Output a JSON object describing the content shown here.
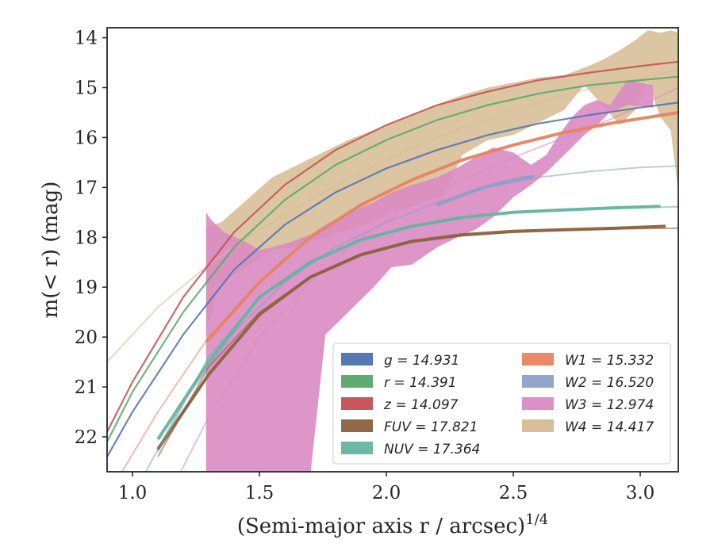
{
  "chart_data": {
    "type": "line",
    "title": "",
    "xlabel": "(Semi-major axis r / arcsec)",
    "xlabel_superscript": "1/4",
    "ylabel": "m(< r) (mag)",
    "xlim": [
      0.9,
      3.15
    ],
    "ylim": [
      22.7,
      13.8
    ],
    "y_inverted": true,
    "x_ticks": [
      1.0,
      1.5,
      2.0,
      2.5,
      3.0
    ],
    "x_tick_labels": [
      "1.0",
      "1.5",
      "2.0",
      "2.5",
      "3.0"
    ],
    "y_ticks": [
      14,
      15,
      16,
      17,
      18,
      19,
      20,
      21,
      22
    ],
    "y_tick_labels": [
      "14",
      "15",
      "16",
      "17",
      "18",
      "19",
      "20",
      "21",
      "22"
    ],
    "grid": false,
    "legend_position": "lower-right",
    "legend_columns": 2,
    "series": [
      {
        "name": "g = 14.931",
        "color": "#4c72b0",
        "kind": "curve",
        "model_x": [
          0.9,
          1.0,
          1.2,
          1.4,
          1.6,
          1.8,
          2.0,
          2.2,
          2.4,
          2.6,
          2.8,
          3.0,
          3.15
        ],
        "model_y": [
          22.4,
          21.5,
          19.95,
          18.65,
          17.75,
          17.1,
          16.62,
          16.25,
          15.95,
          15.72,
          15.55,
          15.4,
          15.3
        ],
        "data_x": [
          0.9,
          1.0,
          1.2,
          1.4,
          1.6,
          1.8,
          2.0,
          2.2,
          2.4,
          2.6,
          2.8,
          3.0,
          3.15
        ],
        "data_y": [
          22.4,
          21.5,
          19.95,
          18.65,
          17.75,
          17.1,
          16.62,
          16.25,
          15.95,
          15.72,
          15.55,
          15.4,
          15.3
        ]
      },
      {
        "name": "r = 14.391",
        "color": "#55a868",
        "kind": "curve",
        "model_x": [
          0.9,
          1.0,
          1.2,
          1.4,
          1.6,
          1.8,
          2.0,
          2.2,
          2.4,
          2.6,
          2.8,
          3.0,
          3.15
        ],
        "model_y": [
          22.1,
          21.1,
          19.5,
          18.2,
          17.25,
          16.55,
          16.05,
          15.65,
          15.35,
          15.12,
          14.95,
          14.85,
          14.78
        ],
        "data_x": [
          0.9,
          1.0,
          1.2,
          1.4,
          1.6,
          1.8,
          2.0,
          2.2,
          2.4,
          2.6,
          2.8,
          3.0,
          3.15
        ],
        "data_y": [
          22.1,
          21.1,
          19.5,
          18.2,
          17.25,
          16.55,
          16.05,
          15.65,
          15.35,
          15.12,
          14.95,
          14.85,
          14.78
        ]
      },
      {
        "name": "z = 14.097",
        "color": "#c44e52",
        "kind": "curve",
        "model_x": [
          0.9,
          1.0,
          1.2,
          1.4,
          1.6,
          1.8,
          2.0,
          2.2,
          2.4,
          2.6,
          2.8,
          3.0,
          3.15
        ],
        "model_y": [
          21.9,
          20.9,
          19.2,
          17.9,
          16.95,
          16.25,
          15.75,
          15.35,
          15.08,
          14.85,
          14.7,
          14.57,
          14.48
        ],
        "data_x": [
          0.9,
          1.0,
          1.2,
          1.4,
          1.6,
          1.8,
          2.0,
          2.2,
          2.4,
          2.6,
          2.8,
          3.0,
          3.15
        ],
        "data_y": [
          21.9,
          20.9,
          19.2,
          17.9,
          16.95,
          16.25,
          15.75,
          15.35,
          15.08,
          14.85,
          14.7,
          14.57,
          14.48
        ]
      },
      {
        "name": "FUV = 17.821",
        "color": "#8c613c",
        "kind": "curve",
        "model_x": [
          1.1,
          1.3,
          1.5,
          1.7,
          1.9,
          2.1,
          2.3,
          2.5,
          2.7,
          2.9,
          3.15
        ],
        "model_y": [
          22.4,
          20.6,
          19.5,
          18.8,
          18.35,
          18.1,
          17.97,
          17.9,
          17.86,
          17.83,
          17.82
        ],
        "data_x": [
          1.1,
          1.3,
          1.5,
          1.7,
          1.9,
          2.1,
          2.3,
          2.5,
          2.7,
          2.9,
          3.1
        ],
        "data_y": [
          22.25,
          20.75,
          19.55,
          18.8,
          18.35,
          18.08,
          17.95,
          17.88,
          17.85,
          17.82,
          17.78
        ]
      },
      {
        "name": "NUV = 17.364",
        "color": "#64b5a0",
        "kind": "curve",
        "model_x": [
          1.1,
          1.3,
          1.5,
          1.7,
          1.9,
          2.1,
          2.3,
          2.5,
          2.7,
          2.9,
          3.15
        ],
        "model_y": [
          22.3,
          20.4,
          19.2,
          18.5,
          18.05,
          17.78,
          17.6,
          17.5,
          17.45,
          17.41,
          17.39
        ],
        "data_x": [
          1.1,
          1.3,
          1.5,
          1.7,
          1.9,
          2.1,
          2.3,
          2.5,
          2.7,
          2.9,
          3.08
        ],
        "data_y": [
          22.05,
          20.5,
          19.2,
          18.5,
          18.05,
          17.78,
          17.6,
          17.5,
          17.45,
          17.41,
          17.38
        ]
      },
      {
        "name": "W1 = 15.332",
        "color": "#e8855f",
        "kind": "curve",
        "model_x": [
          0.9,
          1.1,
          1.3,
          1.5,
          1.7,
          1.9,
          2.1,
          2.3,
          2.5,
          2.7,
          2.9,
          3.15
        ],
        "model_y": [
          23.2,
          21.5,
          20.0,
          18.9,
          18.0,
          17.35,
          16.85,
          16.45,
          16.15,
          15.9,
          15.7,
          15.5
        ],
        "data_x": [
          1.29,
          1.5,
          1.7,
          1.9,
          2.1,
          2.3,
          2.5,
          2.7,
          2.9,
          3.15
        ],
        "data_y": [
          20.1,
          18.9,
          18.0,
          17.35,
          16.85,
          16.45,
          16.15,
          15.9,
          15.7,
          15.5
        ]
      },
      {
        "name": "W2 = 16.520",
        "color": "#8c9fc8",
        "kind": "curve",
        "model_x": [
          1.0,
          1.2,
          1.4,
          1.6,
          1.8,
          2.0,
          2.2,
          2.4,
          2.6,
          2.8,
          3.0,
          3.15
        ],
        "model_y": [
          23.2,
          21.3,
          19.9,
          18.9,
          18.2,
          17.7,
          17.3,
          17.0,
          16.8,
          16.68,
          16.6,
          16.57
        ],
        "data_x": [
          2.2,
          2.3,
          2.4,
          2.5,
          2.58
        ],
        "data_y": [
          17.35,
          17.15,
          16.97,
          16.85,
          16.78
        ]
      },
      {
        "name": "W3 = 12.974",
        "color": "#da8bc3",
        "kind": "band",
        "model_x": [
          1.1,
          1.3,
          1.5,
          1.7,
          1.9,
          2.1,
          2.3,
          2.5,
          2.7,
          2.9,
          3.15
        ],
        "model_y": [
          23.6,
          21.6,
          20.0,
          18.9,
          18.0,
          17.35,
          16.85,
          16.4,
          16.0,
          15.6,
          15.0
        ],
        "band_x": [
          1.29,
          1.31,
          1.36,
          1.43,
          1.5,
          1.55,
          1.62,
          1.7,
          1.76,
          1.85,
          1.95,
          2.02,
          2.1,
          2.2,
          2.28,
          2.35,
          2.42,
          2.5,
          2.57,
          2.63,
          2.68,
          2.73,
          2.78,
          2.83,
          2.88,
          2.95,
          3.05
        ],
        "band_upper": [
          17.5,
          17.65,
          17.9,
          18.05,
          18.25,
          18.2,
          18.1,
          17.95,
          17.75,
          17.5,
          17.3,
          17.1,
          16.95,
          16.8,
          16.6,
          16.4,
          16.2,
          16.3,
          16.55,
          16.35,
          15.95,
          15.6,
          15.35,
          15.25,
          15.35,
          14.85,
          14.95
        ],
        "band_lower": [
          22.8,
          22.8,
          22.8,
          22.8,
          22.8,
          22.8,
          22.8,
          22.8,
          19.95,
          19.5,
          19.0,
          18.6,
          18.55,
          18.2,
          18.0,
          17.85,
          17.6,
          17.2,
          16.95,
          16.7,
          16.45,
          16.2,
          15.95,
          15.75,
          15.5,
          15.35,
          15.4
        ]
      },
      {
        "name": "W4 = 14.417",
        "color": "#d6bb93",
        "kind": "band",
        "model_x": [
          0.9,
          1.1,
          1.3,
          1.5,
          1.7,
          1.9,
          2.1,
          2.3,
          2.5,
          2.7,
          2.9,
          3.15
        ],
        "model_y": [
          20.5,
          19.4,
          18.55,
          17.85,
          17.25,
          16.7,
          16.2,
          15.8,
          15.45,
          15.15,
          14.9,
          14.65
        ],
        "band_x": [
          1.29,
          1.35,
          1.45,
          1.55,
          1.65,
          1.75,
          1.85,
          1.95,
          2.05,
          2.15,
          2.22,
          2.3,
          2.4,
          2.5,
          2.6,
          2.7,
          2.78,
          2.85,
          2.92,
          2.98,
          3.03,
          3.08,
          3.12,
          3.15
        ],
        "band_upper": [
          17.8,
          17.7,
          17.25,
          16.8,
          16.55,
          16.3,
          16.05,
          15.85,
          15.65,
          15.45,
          15.3,
          15.15,
          15.0,
          14.9,
          14.8,
          14.75,
          14.6,
          14.45,
          14.25,
          14.05,
          13.85,
          13.9,
          13.85,
          13.9
        ],
        "band_lower": [
          19.9,
          18.9,
          18.6,
          18.25,
          18.2,
          18.0,
          17.85,
          17.7,
          17.45,
          17.3,
          17.2,
          16.35,
          16.05,
          15.95,
          15.7,
          15.45,
          14.95,
          15.35,
          15.75,
          15.45,
          14.9,
          15.6,
          15.85,
          17.1
        ]
      }
    ]
  }
}
